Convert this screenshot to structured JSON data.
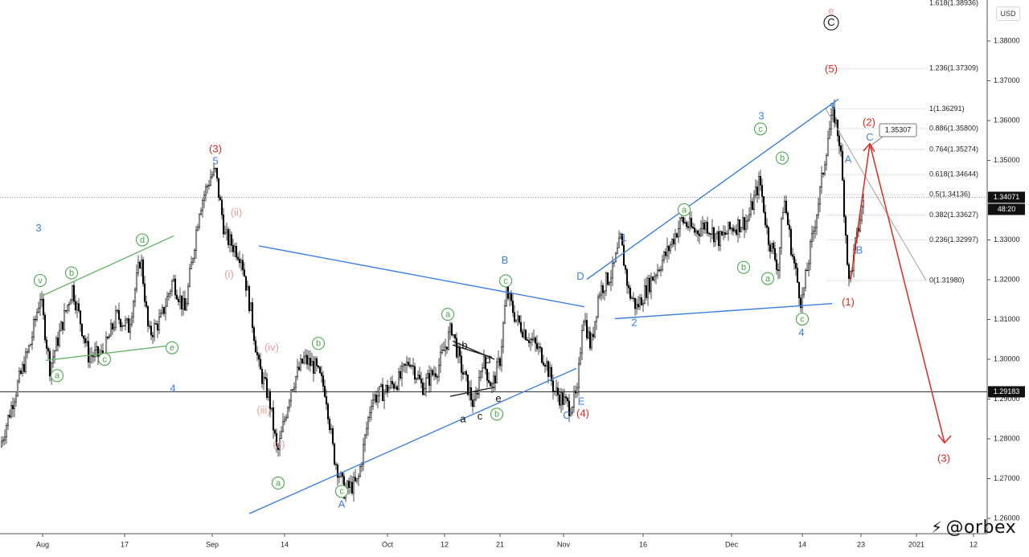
{
  "currency_button": "USD",
  "watermark": "@orbex",
  "price_now": {
    "value": "1.34071",
    "countdown": "48:20"
  },
  "horizontal_level": "1.29183",
  "fib_top_label": "1.618(1.38936)",
  "fib_levels": [
    {
      "label": "1.236(1.37309)",
      "value": 1.37309
    },
    {
      "label": "1(1.36291)",
      "value": 1.36291
    },
    {
      "label": "0.886(1.35800)",
      "value": 1.358
    },
    {
      "label": "0.764(1.35274)",
      "value": 1.35274
    },
    {
      "label": "0.618(1.34644)",
      "value": 1.34644
    },
    {
      "label": "0.5(1.34136)",
      "value": 1.34136
    },
    {
      "label": "0.382(1.33627)",
      "value": 1.33627
    },
    {
      "label": "0.236(1.32997)",
      "value": 1.32997
    },
    {
      "label": "0(1.31980)",
      "value": 1.3198
    }
  ],
  "target_callout": "1.35307",
  "colors": {
    "candle": "#000000",
    "blue": "#3d7fdc",
    "red": "#e0281e",
    "pink": "#e89b9b",
    "green": "#4aa84a",
    "fib_line": "#c8c8c8"
  },
  "chart_data": {
    "type": "candlestick",
    "instrument_currency": "USD",
    "ylim": [
      1.255,
      1.391
    ],
    "y_ticks": [
      "1.38000",
      "1.37000",
      "1.36000",
      "1.35000",
      "1.34000",
      "1.33000",
      "1.32000",
      "1.31000",
      "1.30000",
      "1.29000",
      "1.28000",
      "1.27000",
      "1.26000"
    ],
    "x_ticks": [
      "Aug",
      "17",
      "Sep",
      "14",
      "Oct",
      "12",
      "21",
      "Nov",
      "16",
      "Dec",
      "14",
      "23",
      "2021",
      "12"
    ],
    "price_path": [
      [
        0,
        1.278
      ],
      [
        18,
        1.291
      ],
      [
        38,
        1.304
      ],
      [
        50,
        1.316
      ],
      [
        62,
        1.298
      ],
      [
        72,
        1.305
      ],
      [
        90,
        1.318
      ],
      [
        110,
        1.301
      ],
      [
        128,
        1.301
      ],
      [
        145,
        1.311
      ],
      [
        160,
        1.308
      ],
      [
        175,
        1.326
      ],
      [
        185,
        1.306
      ],
      [
        200,
        1.31
      ],
      [
        215,
        1.32
      ],
      [
        230,
        1.312
      ],
      [
        248,
        1.338
      ],
      [
        262,
        1.346
      ],
      [
        268,
        1.347
      ],
      [
        280,
        1.331
      ],
      [
        300,
        1.326
      ],
      [
        312,
        1.312
      ],
      [
        322,
        1.298
      ],
      [
        335,
        1.29
      ],
      [
        345,
        1.276
      ],
      [
        362,
        1.293
      ],
      [
        378,
        1.3
      ],
      [
        392,
        1.298
      ],
      [
        405,
        1.292
      ],
      [
        415,
        1.276
      ],
      [
        428,
        1.267
      ],
      [
        445,
        1.269
      ],
      [
        462,
        1.29
      ],
      [
        478,
        1.292
      ],
      [
        497,
        1.295
      ],
      [
        510,
        1.3
      ],
      [
        525,
        1.293
      ],
      [
        545,
        1.298
      ],
      [
        562,
        1.308
      ],
      [
        572,
        1.299
      ],
      [
        590,
        1.288
      ],
      [
        600,
        1.3
      ],
      [
        612,
        1.293
      ],
      [
        622,
        1.3
      ],
      [
        630,
        1.317
      ],
      [
        642,
        1.31
      ],
      [
        660,
        1.305
      ],
      [
        678,
        1.3
      ],
      [
        690,
        1.292
      ],
      [
        708,
        1.288
      ],
      [
        718,
        1.291
      ],
      [
        725,
        1.312
      ],
      [
        735,
        1.303
      ],
      [
        745,
        1.317
      ],
      [
        762,
        1.322
      ],
      [
        772,
        1.33
      ],
      [
        782,
        1.317
      ],
      [
        792,
        1.313
      ],
      [
        810,
        1.32
      ],
      [
        830,
        1.327
      ],
      [
        848,
        1.335
      ],
      [
        865,
        1.332
      ],
      [
        878,
        1.334
      ],
      [
        895,
        1.33
      ],
      [
        910,
        1.333
      ],
      [
        930,
        1.335
      ],
      [
        945,
        1.345
      ],
      [
        955,
        1.331
      ],
      [
        968,
        1.323
      ],
      [
        975,
        1.341
      ],
      [
        985,
        1.327
      ],
      [
        997,
        1.314
      ],
      [
        1010,
        1.33
      ],
      [
        1020,
        1.342
      ],
      [
        1030,
        1.356
      ],
      [
        1037,
        1.362
      ],
      [
        1045,
        1.354
      ],
      [
        1056,
        1.319
      ],
      [
        1066,
        1.331
      ],
      [
        1075,
        1.341
      ]
    ],
    "trendlines": {
      "blue": [
        [
          [
            322,
            1.3285
          ],
          [
            727,
            1.3132
          ]
        ],
        [
          [
            310,
            1.2612
          ],
          [
            717,
            1.2977
          ]
        ],
        [
          [
            730,
            1.3201
          ],
          [
            1043,
            1.3654
          ]
        ],
        [
          [
            765,
            1.3102
          ],
          [
            1035,
            1.314
          ]
        ]
      ],
      "green": [
        [
          [
            53,
            1.316
          ],
          [
            216,
            1.331
          ]
        ],
        [
          [
            57,
            1.2997
          ],
          [
            213,
            1.3035
          ]
        ]
      ],
      "black": [
        [
          [
            563,
            1.3036
          ],
          [
            612,
            1.3005
          ]
        ],
        [
          [
            560,
            1.2907
          ],
          [
            616,
            1.293
          ]
        ],
        [
          [
            563,
            1.3046
          ],
          [
            615,
            1.3
          ]
        ]
      ],
      "fib_diagonal": [
        [
          [
            1027,
            1.363
          ],
          [
            1152,
            1.3198
          ]
        ]
      ]
    },
    "projection": [
      [
        1058,
        1.3198
      ],
      [
        1082,
        1.3542
      ],
      [
        1175,
        1.279
      ]
    ],
    "wave_labels": [
      {
        "t": "3",
        "x": 48,
        "y": 1.3328,
        "c": "blue"
      },
      {
        "t": "4",
        "x": 215,
        "y": 1.2925,
        "c": "blue"
      },
      {
        "t": "5",
        "x": 268,
        "y": 1.3497,
        "c": "blue"
      },
      {
        "t": "(3)",
        "x": 268,
        "y": 1.3527,
        "c": "red"
      },
      {
        "t": "(ii)",
        "x": 294,
        "y": 1.3368,
        "c": "pink"
      },
      {
        "t": "(i)",
        "x": 285,
        "y": 1.3212,
        "c": "pink"
      },
      {
        "t": "(iv)",
        "x": 338,
        "y": 1.3028,
        "c": "pink"
      },
      {
        "t": "(iii)",
        "x": 328,
        "y": 1.2871,
        "c": "pink"
      },
      {
        "t": "(v)",
        "x": 347,
        "y": 1.2785,
        "c": "pink"
      },
      {
        "t": "A",
        "x": 425,
        "y": 1.2634,
        "c": "blue"
      },
      {
        "t": "B",
        "x": 628,
        "y": 1.3247,
        "c": "blue"
      },
      {
        "t": "C",
        "x": 705,
        "y": 1.2857,
        "c": "blue"
      },
      {
        "t": "D",
        "x": 722,
        "y": 1.3207,
        "c": "blue"
      },
      {
        "t": "E",
        "x": 723,
        "y": 1.2893,
        "c": "blue"
      },
      {
        "t": "(4)",
        "x": 725,
        "y": 1.2863,
        "c": "red"
      },
      {
        "t": "1",
        "x": 776,
        "y": 1.3304,
        "c": "blue"
      },
      {
        "t": "2",
        "x": 789,
        "y": 1.3091,
        "c": "blue"
      },
      {
        "t": "3",
        "x": 947,
        "y": 1.361,
        "c": "blue"
      },
      {
        "t": "4",
        "x": 997,
        "y": 1.3066,
        "c": "blue"
      },
      {
        "t": "5",
        "x": 1036,
        "y": 1.3633,
        "c": "blue"
      },
      {
        "t": "(5)",
        "x": 1034,
        "y": 1.3728,
        "c": "red"
      },
      {
        "t": "(1)",
        "x": 1055,
        "y": 1.3142,
        "c": "red"
      },
      {
        "t": "(2)",
        "x": 1081,
        "y": 1.3594,
        "c": "red"
      },
      {
        "t": "e",
        "x": 1034,
        "y": 1.3874,
        "c": "pink"
      },
      {
        "t": "A",
        "x": 1055,
        "y": 1.3501,
        "c": "blue"
      },
      {
        "t": "B",
        "x": 1069,
        "y": 1.3273,
        "c": "blue"
      },
      {
        "t": "C",
        "x": 1082,
        "y": 1.3556,
        "c": "blue"
      },
      {
        "t": "(3)",
        "x": 1174,
        "y": 1.2749,
        "c": "red"
      },
      {
        "t": "b",
        "x": 578,
        "y": 1.3033,
        "c": "black"
      },
      {
        "t": "d",
        "x": 607,
        "y": 1.2997,
        "c": "black"
      },
      {
        "t": "e",
        "x": 620,
        "y": 1.29,
        "c": "black"
      },
      {
        "t": "a",
        "x": 576,
        "y": 1.2848,
        "c": "black"
      },
      {
        "t": "c",
        "x": 597,
        "y": 1.2855,
        "c": "black"
      }
    ],
    "circle_labels": [
      {
        "t": "v",
        "x": 50,
        "y": 1.3198,
        "c": "green"
      },
      {
        "t": "b",
        "x": 89,
        "y": 1.3217,
        "c": "green"
      },
      {
        "t": "d",
        "x": 177,
        "y": 1.33,
        "c": "green"
      },
      {
        "t": "a",
        "x": 71,
        "y": 1.2959,
        "c": "green"
      },
      {
        "t": "c",
        "x": 130,
        "y": 1.3,
        "c": "green"
      },
      {
        "t": "e",
        "x": 214,
        "y": 1.3029,
        "c": "green"
      },
      {
        "t": "b",
        "x": 396,
        "y": 1.304,
        "c": "green"
      },
      {
        "t": "a",
        "x": 346,
        "y": 1.2689,
        "c": "green"
      },
      {
        "t": "c",
        "x": 425,
        "y": 1.2668,
        "c": "green"
      },
      {
        "t": "a",
        "x": 557,
        "y": 1.3113,
        "c": "green"
      },
      {
        "t": "c",
        "x": 629,
        "y": 1.3197,
        "c": "green"
      },
      {
        "t": "b",
        "x": 618,
        "y": 1.2862,
        "c": "green"
      },
      {
        "t": "a",
        "x": 851,
        "y": 1.3376,
        "c": "green"
      },
      {
        "t": "c",
        "x": 946,
        "y": 1.3579,
        "c": "green"
      },
      {
        "t": "b",
        "x": 973,
        "y": 1.3506,
        "c": "green"
      },
      {
        "t": "b",
        "x": 925,
        "y": 1.3231,
        "c": "green"
      },
      {
        "t": "a",
        "x": 955,
        "y": 1.3203,
        "c": "green"
      },
      {
        "t": "c",
        "x": 998,
        "y": 1.3101,
        "c": "green"
      },
      {
        "t": "C",
        "x": 1034,
        "y": 1.3846,
        "c": "black"
      }
    ]
  }
}
